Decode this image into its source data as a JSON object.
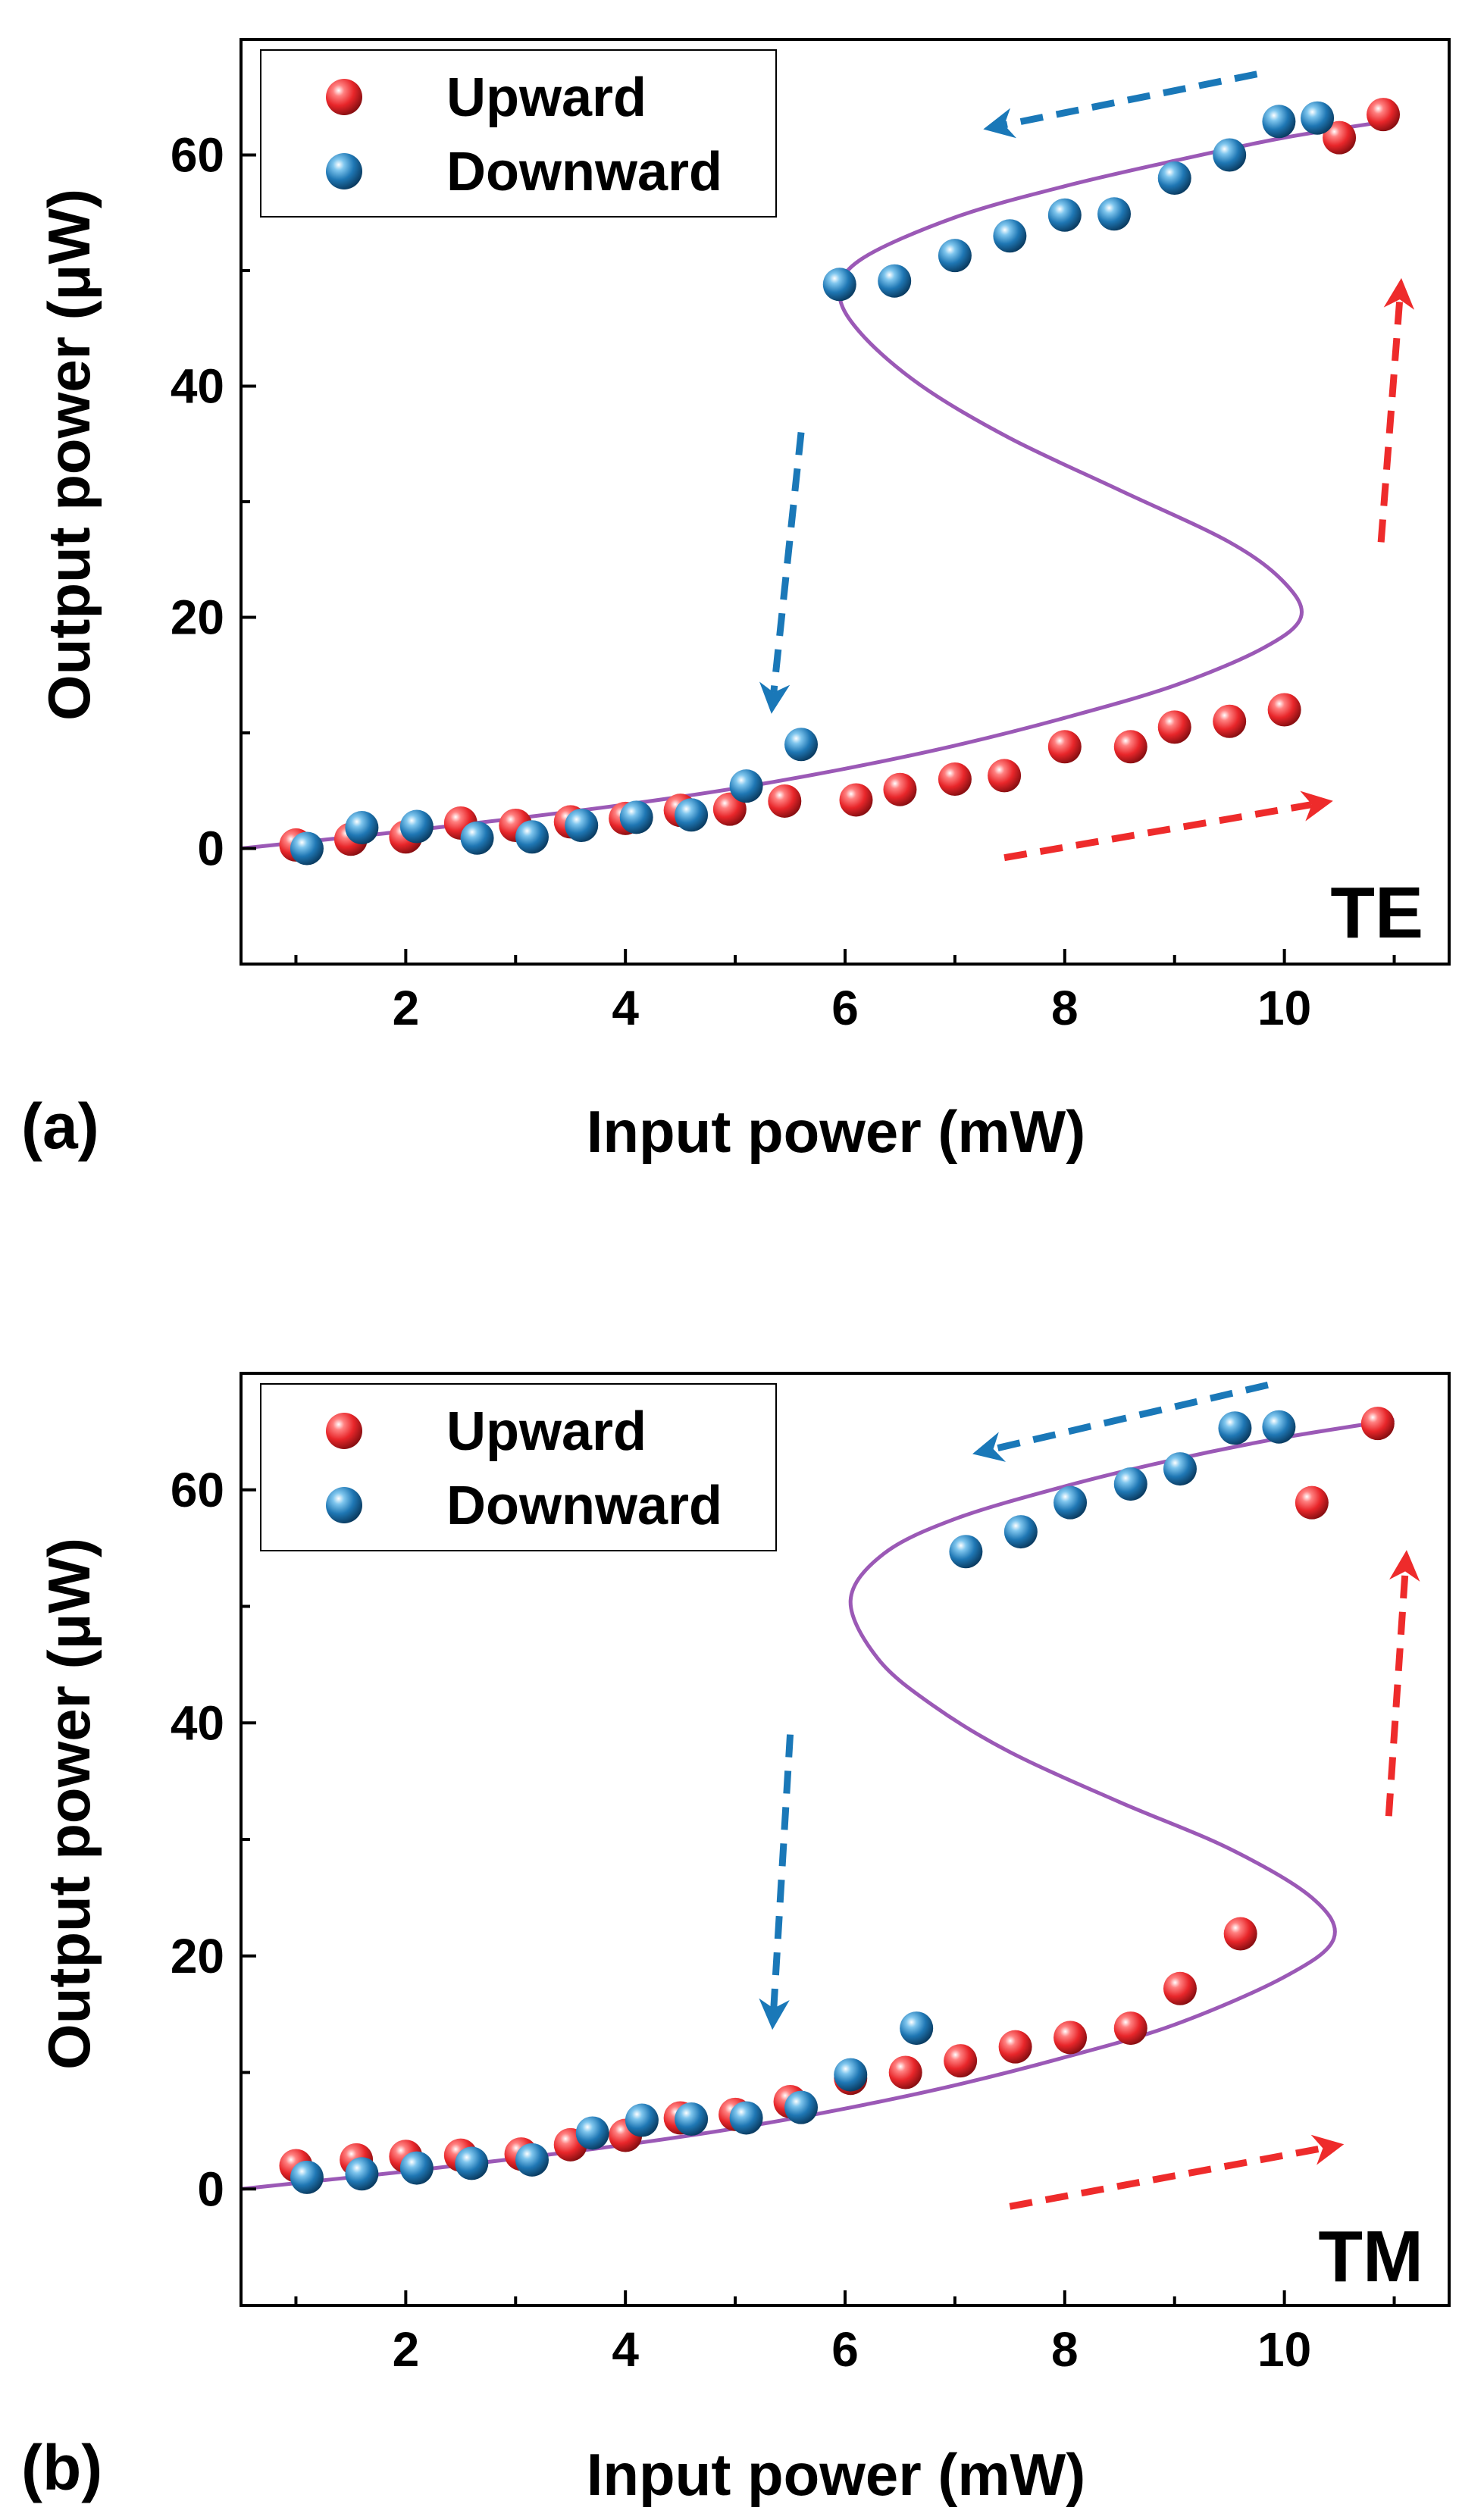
{
  "colors": {
    "upward": "#e8262a",
    "downward": "#1f77b4",
    "fit_curve": "#9b59b6",
    "arrow_red": "#ee2b2b",
    "arrow_blue": "#1a78b8"
  },
  "chart_data": [
    {
      "type": "scatter",
      "panel_label": "(a)",
      "mode_label": "TE",
      "xlabel": "Input power (mW)",
      "ylabel": "Output power (μW)",
      "xlim": [
        0.5,
        11.5
      ],
      "ylim": [
        -10,
        70
      ],
      "xticks": [
        2,
        4,
        6,
        8,
        10
      ],
      "xtick_labels": [
        "2",
        "4",
        "6",
        "8",
        "10"
      ],
      "yticks": [
        0,
        20,
        40,
        60
      ],
      "ytick_labels": [
        "0",
        "20",
        "40",
        "60"
      ],
      "legend": {
        "position": "top-left",
        "entries": [
          "Upward",
          "Downward"
        ]
      },
      "series": [
        {
          "name": "Upward",
          "color": "upward",
          "points": [
            [
              1.0,
              0.3
            ],
            [
              1.5,
              0.8
            ],
            [
              2.0,
              1.0
            ],
            [
              2.5,
              2.2
            ],
            [
              3.0,
              2.0
            ],
            [
              3.5,
              2.3
            ],
            [
              4.0,
              2.6
            ],
            [
              4.5,
              3.3
            ],
            [
              4.95,
              3.4
            ],
            [
              5.45,
              4.1
            ],
            [
              6.1,
              4.2
            ],
            [
              6.5,
              5.1
            ],
            [
              7.0,
              6.0
            ],
            [
              7.45,
              6.3
            ],
            [
              8.0,
              8.8
            ],
            [
              8.6,
              8.8
            ],
            [
              9.0,
              10.5
            ],
            [
              9.5,
              11.0
            ],
            [
              10.0,
              12.0
            ],
            [
              10.5,
              61.5
            ],
            [
              10.9,
              63.5
            ]
          ]
        },
        {
          "name": "Downward",
          "color": "downward",
          "points": [
            [
              1.1,
              0.0
            ],
            [
              1.6,
              1.8
            ],
            [
              2.1,
              1.9
            ],
            [
              2.65,
              0.9
            ],
            [
              3.15,
              1.0
            ],
            [
              3.6,
              2.0
            ],
            [
              4.1,
              2.7
            ],
            [
              4.6,
              2.9
            ],
            [
              5.1,
              5.4
            ],
            [
              5.6,
              9.0
            ],
            [
              5.95,
              48.8
            ],
            [
              6.45,
              49.1
            ],
            [
              7.0,
              51.3
            ],
            [
              7.5,
              53.0
            ],
            [
              8.0,
              54.8
            ],
            [
              8.45,
              54.9
            ],
            [
              9.0,
              58.0
            ],
            [
              9.5,
              60.0
            ],
            [
              9.95,
              62.9
            ],
            [
              10.3,
              63.2
            ]
          ]
        },
        {
          "name": "Fit",
          "kind": "line",
          "color": "fit_curve",
          "points": [
            [
              0.5,
              0.0
            ],
            [
              1.0,
              0.5
            ],
            [
              2.0,
              1.5
            ],
            [
              3.0,
              2.6
            ],
            [
              4.0,
              3.8
            ],
            [
              5.0,
              5.2
            ],
            [
              6.0,
              6.9
            ],
            [
              7.0,
              8.9
            ],
            [
              8.0,
              11.3
            ],
            [
              9.0,
              14.1
            ],
            [
              9.8,
              17.3
            ],
            [
              10.15,
              20.0
            ],
            [
              10.0,
              23.0
            ],
            [
              9.5,
              26.5
            ],
            [
              8.5,
              31.0
            ],
            [
              7.5,
              35.5
            ],
            [
              6.7,
              40.0
            ],
            [
              6.15,
              44.5
            ],
            [
              5.95,
              48.0
            ],
            [
              6.15,
              51.0
            ],
            [
              7.0,
              54.6
            ],
            [
              8.0,
              57.3
            ],
            [
              9.0,
              59.5
            ],
            [
              10.0,
              61.5
            ],
            [
              11.0,
              63.0
            ]
          ]
        }
      ],
      "annotations": [
        {
          "kind": "arrow",
          "color": "arrow_blue",
          "from": [
            9.75,
            67.0
          ],
          "to": [
            7.45,
            62.6
          ]
        },
        {
          "kind": "arrow",
          "color": "arrow_blue",
          "from": [
            5.6,
            36.0
          ],
          "to": [
            5.35,
            13.5
          ]
        },
        {
          "kind": "arrow",
          "color": "arrow_red",
          "from": [
            7.45,
            -0.8
          ],
          "to": [
            10.25,
            3.8
          ]
        },
        {
          "kind": "arrow",
          "color": "arrow_red",
          "from": [
            10.88,
            26.5
          ],
          "to": [
            11.05,
            47.5
          ]
        }
      ]
    },
    {
      "type": "scatter",
      "panel_label": "(b)",
      "mode_label": "TM",
      "xlabel": "Input power (mW)",
      "ylabel": "Output power (μW)",
      "xlim": [
        0.5,
        11.5
      ],
      "ylim": [
        -10,
        70
      ],
      "xticks": [
        2,
        4,
        6,
        8,
        10
      ],
      "xtick_labels": [
        "2",
        "4",
        "6",
        "8",
        "10"
      ],
      "yticks": [
        0,
        20,
        40,
        60
      ],
      "ytick_labels": [
        "0",
        "20",
        "40",
        "60"
      ],
      "legend": {
        "position": "top-left",
        "entries": [
          "Upward",
          "Downward"
        ]
      },
      "series": [
        {
          "name": "Upward",
          "color": "upward",
          "points": [
            [
              1.0,
              2.0
            ],
            [
              1.55,
              2.5
            ],
            [
              2.0,
              2.8
            ],
            [
              2.5,
              2.9
            ],
            [
              3.05,
              3.0
            ],
            [
              3.5,
              3.8
            ],
            [
              4.0,
              4.6
            ],
            [
              4.5,
              6.1
            ],
            [
              5.0,
              6.4
            ],
            [
              5.5,
              7.5
            ],
            [
              6.05,
              9.5
            ],
            [
              6.55,
              10.0
            ],
            [
              7.05,
              11.0
            ],
            [
              7.55,
              12.2
            ],
            [
              8.05,
              13.0
            ],
            [
              8.6,
              13.8
            ],
            [
              9.05,
              17.2
            ],
            [
              9.6,
              21.9
            ],
            [
              10.25,
              58.9
            ],
            [
              10.85,
              65.7
            ]
          ]
        },
        {
          "name": "Downward",
          "color": "downward",
          "points": [
            [
              1.1,
              1.0
            ],
            [
              1.6,
              1.3
            ],
            [
              2.1,
              1.8
            ],
            [
              2.6,
              2.2
            ],
            [
              3.15,
              2.5
            ],
            [
              3.7,
              4.8
            ],
            [
              4.15,
              5.9
            ],
            [
              4.6,
              6.0
            ],
            [
              5.1,
              6.1
            ],
            [
              5.6,
              7.0
            ],
            [
              6.05,
              9.8
            ],
            [
              6.65,
              13.8
            ],
            [
              7.1,
              54.7
            ],
            [
              7.6,
              56.4
            ],
            [
              8.05,
              58.9
            ],
            [
              8.6,
              60.5
            ],
            [
              9.05,
              61.8
            ],
            [
              9.55,
              65.3
            ],
            [
              9.95,
              65.4
            ]
          ]
        },
        {
          "name": "Fit",
          "kind": "line",
          "color": "fit_curve",
          "points": [
            [
              0.5,
              0.0
            ],
            [
              1.0,
              0.5
            ],
            [
              2.0,
              1.5
            ],
            [
              3.0,
              2.6
            ],
            [
              4.0,
              3.8
            ],
            [
              5.0,
              5.2
            ],
            [
              6.0,
              6.9
            ],
            [
              7.0,
              8.9
            ],
            [
              8.0,
              11.3
            ],
            [
              9.0,
              14.1
            ],
            [
              10.0,
              18.2
            ],
            [
              10.45,
              21.5
            ],
            [
              10.25,
              25.0
            ],
            [
              9.5,
              29.2
            ],
            [
              8.5,
              33.2
            ],
            [
              7.5,
              37.5
            ],
            [
              6.8,
              41.5
            ],
            [
              6.3,
              45.5
            ],
            [
              6.05,
              50.5
            ],
            [
              6.35,
              54.5
            ],
            [
              7.0,
              57.5
            ],
            [
              8.0,
              60.3
            ],
            [
              9.0,
              62.6
            ],
            [
              10.0,
              64.5
            ],
            [
              11.0,
              66.0
            ]
          ]
        }
      ],
      "annotations": [
        {
          "kind": "arrow",
          "color": "arrow_blue",
          "from": [
            9.85,
            69.0
          ],
          "to": [
            7.35,
            63.5
          ]
        },
        {
          "kind": "arrow",
          "color": "arrow_blue",
          "from": [
            5.5,
            39.0
          ],
          "to": [
            5.35,
            15.5
          ]
        },
        {
          "kind": "arrow",
          "color": "arrow_red",
          "from": [
            7.5,
            -1.5
          ],
          "to": [
            10.35,
            3.5
          ]
        },
        {
          "kind": "arrow",
          "color": "arrow_red",
          "from": [
            10.95,
            32.0
          ],
          "to": [
            11.1,
            53.0
          ]
        }
      ]
    }
  ]
}
